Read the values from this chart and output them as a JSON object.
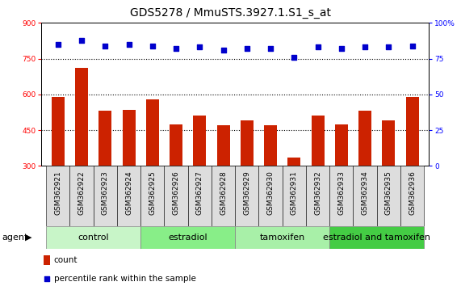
{
  "title": "GDS5278 / MmuSTS.3927.1.S1_s_at",
  "samples": [
    "GSM362921",
    "GSM362922",
    "GSM362923",
    "GSM362924",
    "GSM362925",
    "GSM362926",
    "GSM362927",
    "GSM362928",
    "GSM362929",
    "GSM362930",
    "GSM362931",
    "GSM362932",
    "GSM362933",
    "GSM362934",
    "GSM362935",
    "GSM362936"
  ],
  "counts": [
    590,
    710,
    530,
    535,
    580,
    475,
    510,
    470,
    490,
    470,
    335,
    510,
    475,
    530,
    490,
    590
  ],
  "percentile_ranks": [
    85,
    88,
    84,
    85,
    84,
    82,
    83,
    81,
    82,
    82,
    76,
    83,
    82,
    83,
    83,
    84
  ],
  "groups": [
    {
      "name": "control",
      "start": 0,
      "end": 4,
      "color": "#c8f5c8"
    },
    {
      "name": "estradiol",
      "start": 4,
      "end": 8,
      "color": "#88ee88"
    },
    {
      "name": "tamoxifen",
      "start": 8,
      "end": 12,
      "color": "#a8f0a8"
    },
    {
      "name": "estradiol and tamoxifen",
      "start": 12,
      "end": 16,
      "color": "#44cc44"
    }
  ],
  "bar_color": "#cc2200",
  "dot_color": "#0000cc",
  "left_ylim": [
    300,
    900
  ],
  "left_yticks": [
    300,
    450,
    600,
    750,
    900
  ],
  "right_ylim": [
    0,
    100
  ],
  "right_yticks": [
    0,
    25,
    50,
    75,
    100
  ],
  "right_yticklabels": [
    "0",
    "25",
    "50",
    "75",
    "100%"
  ],
  "grid_lines": [
    750,
    600,
    450
  ],
  "bg_color": "#ffffff",
  "plot_bg_color": "#ffffff",
  "title_fontsize": 10,
  "tick_fontsize": 6.5,
  "label_fontsize": 8,
  "group_label_fontsize": 8,
  "legend_fontsize": 7.5,
  "xtick_bg": "#dddddd"
}
